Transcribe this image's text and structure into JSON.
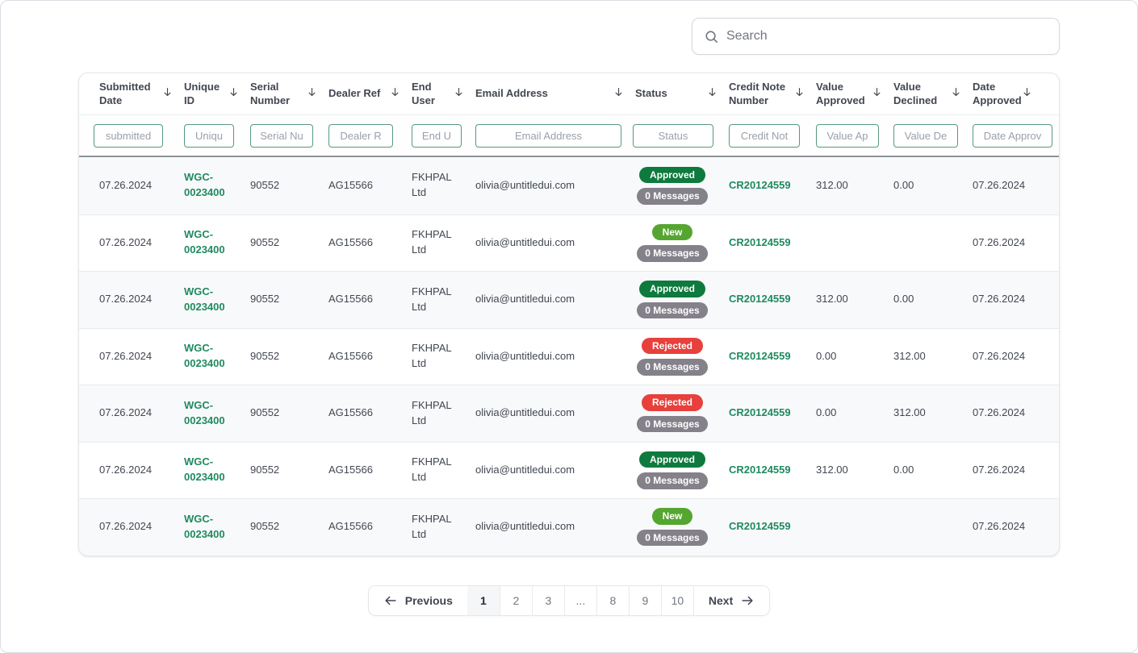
{
  "search": {
    "placeholder": "Search"
  },
  "table": {
    "columns": [
      {
        "label": "Submitted Date",
        "filter_placeholder": "submitted"
      },
      {
        "label": "Unique ID",
        "filter_placeholder": "Uniqu"
      },
      {
        "label": "Serial Number",
        "filter_placeholder": "Serial Nu"
      },
      {
        "label": "Dealer Ref",
        "filter_placeholder": "Dealer R"
      },
      {
        "label": "End User",
        "filter_placeholder": "End U"
      },
      {
        "label": "Email Address",
        "filter_placeholder": "Email Address"
      },
      {
        "label": "Status",
        "filter_placeholder": "Status"
      },
      {
        "label": "Credit Note Number",
        "filter_placeholder": "Credit Not"
      },
      {
        "label": "Value Approved",
        "filter_placeholder": "Value Ap"
      },
      {
        "label": "Value Declined",
        "filter_placeholder": "Value De"
      },
      {
        "label": "Date Approved",
        "filter_placeholder": "Date Approv"
      }
    ],
    "rows": [
      {
        "submitted_date": "07.26.2024",
        "unique_id": "WGC-0023400",
        "serial_number": "90552",
        "dealer_ref": "AG15566",
        "end_user": "FKHPAL Ltd",
        "email": "olivia@untitledui.com",
        "status": "Approved",
        "messages": "0 Messages",
        "credit_note": "CR20124559",
        "value_approved": "312.00",
        "value_declined": "0.00",
        "date_approved": "07.26.2024"
      },
      {
        "submitted_date": "07.26.2024",
        "unique_id": "WGC-0023400",
        "serial_number": "90552",
        "dealer_ref": "AG15566",
        "end_user": "FKHPAL Ltd",
        "email": "olivia@untitledui.com",
        "status": "New",
        "messages": "0 Messages",
        "credit_note": "CR20124559",
        "value_approved": "",
        "value_declined": "",
        "date_approved": "07.26.2024"
      },
      {
        "submitted_date": "07.26.2024",
        "unique_id": "WGC-0023400",
        "serial_number": "90552",
        "dealer_ref": "AG15566",
        "end_user": "FKHPAL Ltd",
        "email": "olivia@untitledui.com",
        "status": "Approved",
        "messages": "0 Messages",
        "credit_note": "CR20124559",
        "value_approved": "312.00",
        "value_declined": "0.00",
        "date_approved": "07.26.2024"
      },
      {
        "submitted_date": "07.26.2024",
        "unique_id": "WGC-0023400",
        "serial_number": "90552",
        "dealer_ref": "AG15566",
        "end_user": "FKHPAL Ltd",
        "email": "olivia@untitledui.com",
        "status": "Rejected",
        "messages": "0 Messages",
        "credit_note": "CR20124559",
        "value_approved": "0.00",
        "value_declined": "312.00",
        "date_approved": "07.26.2024"
      },
      {
        "submitted_date": "07.26.2024",
        "unique_id": "WGC-0023400",
        "serial_number": "90552",
        "dealer_ref": "AG15566",
        "end_user": "FKHPAL Ltd",
        "email": "olivia@untitledui.com",
        "status": "Rejected",
        "messages": "0 Messages",
        "credit_note": "CR20124559",
        "value_approved": "0.00",
        "value_declined": "312.00",
        "date_approved": "07.26.2024"
      },
      {
        "submitted_date": "07.26.2024",
        "unique_id": "WGC-0023400",
        "serial_number": "90552",
        "dealer_ref": "AG15566",
        "end_user": "FKHPAL Ltd",
        "email": "olivia@untitledui.com",
        "status": "Approved",
        "messages": "0 Messages",
        "credit_note": "CR20124559",
        "value_approved": "312.00",
        "value_declined": "0.00",
        "date_approved": "07.26.2024"
      },
      {
        "submitted_date": "07.26.2024",
        "unique_id": "WGC-0023400",
        "serial_number": "90552",
        "dealer_ref": "AG15566",
        "end_user": "FKHPAL Ltd",
        "email": "olivia@untitledui.com",
        "status": "New",
        "messages": "0 Messages",
        "credit_note": "CR20124559",
        "value_approved": "",
        "value_declined": "",
        "date_approved": "07.26.2024"
      }
    ]
  },
  "status_colors": {
    "Approved": "#0E7A3D",
    "New": "#55A630",
    "Rejected": "#E8403C"
  },
  "icons": {
    "search": "search-icon",
    "sort": "sort-descending-icon",
    "prev_arrow": "arrow-left-icon",
    "next_arrow": "arrow-right-icon"
  },
  "pagination": {
    "previous_label": "Previous",
    "next_label": "Next",
    "pages": [
      "1",
      "2",
      "3",
      "...",
      "8",
      "9",
      "10"
    ],
    "active_page": "1"
  }
}
